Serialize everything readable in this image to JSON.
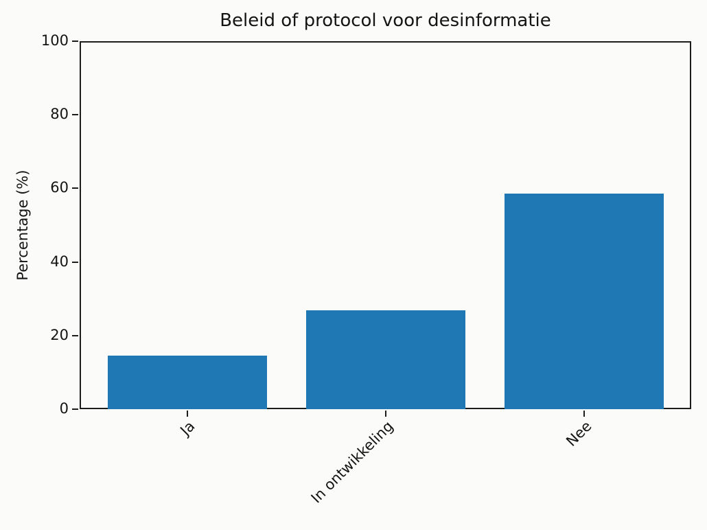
{
  "chart_data": {
    "type": "bar",
    "title": "Beleid of protocol voor desinformatie",
    "categories": [
      "Ja",
      "In ontwikkeling",
      "Nee"
    ],
    "values": [
      14.6,
      26.8,
      58.5
    ],
    "xlabel": "",
    "ylabel": "Percentage (%)",
    "ylim": [
      0,
      100
    ],
    "yticks": [
      0,
      20,
      40,
      60,
      80,
      100
    ],
    "ytick_labels": [
      "0",
      "20",
      "40",
      "60",
      "80",
      "100"
    ],
    "x_tick_rotation_deg": 45,
    "bar_color": "#1f77b4",
    "axis_color": "#1c1c1c",
    "grid": false,
    "legend": null
  }
}
